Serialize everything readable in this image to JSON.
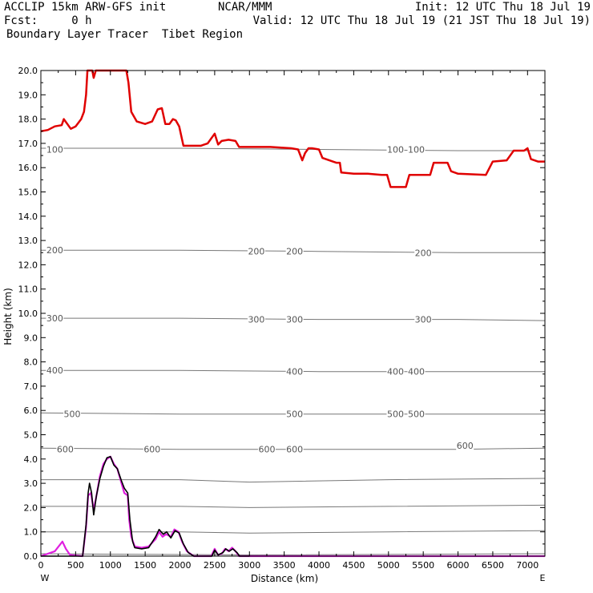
{
  "header": {
    "line1_left": "ACCLIP 15km ARW-GFS init",
    "line1_center": "NCAR/MMM",
    "line1_right": "Init: 12 UTC Thu 18 Jul 19",
    "line2_left": "Fcst:     0 h",
    "line2_right": "Valid: 12 UTC Thu 18 Jul 19 (21 JST Thu 18 Jul 19)",
    "line3_left": "Boundary Layer Tracer  Tibet Region"
  },
  "colors": {
    "tracer_top": "#e00000",
    "tracer_base_magenta": "#e020e0",
    "tracer_base_black": "#000000",
    "contour": "#777777"
  },
  "chart_data": {
    "type": "line",
    "title": "",
    "xlabel": "Distance (km)",
    "ylabel": "Height (km)",
    "xlim": [
      0,
      7250
    ],
    "ylim": [
      0,
      20
    ],
    "x_ticks": [
      "0",
      "500",
      "1000",
      "1500",
      "2000",
      "2500",
      "3000",
      "3500",
      "4000",
      "4500",
      "5000",
      "5500",
      "6000",
      "6500",
      "7000"
    ],
    "x_tick_values": [
      0,
      500,
      1000,
      1500,
      2000,
      2500,
      3000,
      3500,
      4000,
      4500,
      5000,
      5500,
      6000,
      6500,
      7000
    ],
    "y_ticks": [
      "0.0",
      "1.0",
      "2.0",
      "3.0",
      "4.0",
      "5.0",
      "6.0",
      "7.0",
      "8.0",
      "9.0",
      "10.0",
      "11.0",
      "12.0",
      "13.0",
      "14.0",
      "15.0",
      "16.0",
      "17.0",
      "18.0",
      "19.0",
      "20.0"
    ],
    "y_tick_values": [
      0,
      1,
      2,
      3,
      4,
      5,
      6,
      7,
      8,
      9,
      10,
      11,
      12,
      13,
      14,
      15,
      16,
      17,
      18,
      19,
      20
    ],
    "end_labels": {
      "left": "W",
      "right": "E"
    },
    "pressure_contours": [
      {
        "level": "100",
        "points": [
          [
            0,
            16.8
          ],
          [
            2000,
            16.8
          ],
          [
            4000,
            16.75
          ],
          [
            6000,
            16.7
          ],
          [
            7250,
            16.7
          ]
        ],
        "labels": [
          [
            200,
            16.75
          ],
          [
            5100,
            16.75
          ],
          [
            5400,
            16.75
          ]
        ]
      },
      {
        "level": "200",
        "points": [
          [
            0,
            12.6
          ],
          [
            2000,
            12.6
          ],
          [
            4000,
            12.55
          ],
          [
            6000,
            12.5
          ],
          [
            7250,
            12.5
          ]
        ],
        "labels": [
          [
            200,
            12.6
          ],
          [
            3100,
            12.55
          ],
          [
            3650,
            12.55
          ],
          [
            5500,
            12.5
          ]
        ]
      },
      {
        "level": "300",
        "points": [
          [
            0,
            9.8
          ],
          [
            2000,
            9.8
          ],
          [
            4000,
            9.75
          ],
          [
            6000,
            9.75
          ],
          [
            7250,
            9.7
          ]
        ],
        "labels": [
          [
            200,
            9.8
          ],
          [
            3100,
            9.75
          ],
          [
            3650,
            9.75
          ],
          [
            5500,
            9.75
          ]
        ]
      },
      {
        "level": "400",
        "points": [
          [
            0,
            7.65
          ],
          [
            2000,
            7.65
          ],
          [
            4000,
            7.6
          ],
          [
            6000,
            7.6
          ],
          [
            7250,
            7.6
          ]
        ],
        "labels": [
          [
            200,
            7.65
          ],
          [
            3650,
            7.6
          ],
          [
            5100,
            7.6
          ],
          [
            5400,
            7.6
          ]
        ]
      },
      {
        "level": "500",
        "points": [
          [
            0,
            5.9
          ],
          [
            2000,
            5.85
          ],
          [
            4000,
            5.85
          ],
          [
            6000,
            5.85
          ],
          [
            7250,
            5.85
          ]
        ],
        "labels": [
          [
            450,
            5.85
          ],
          [
            3650,
            5.85
          ],
          [
            5100,
            5.85
          ],
          [
            5400,
            5.85
          ]
        ]
      },
      {
        "level": "600",
        "points": [
          [
            0,
            4.45
          ],
          [
            2000,
            4.4
          ],
          [
            4000,
            4.4
          ],
          [
            6000,
            4.4
          ],
          [
            7250,
            4.45
          ]
        ],
        "labels": [
          [
            350,
            4.4
          ],
          [
            1600,
            4.4
          ],
          [
            3250,
            4.4
          ],
          [
            3650,
            4.4
          ],
          [
            6100,
            4.55
          ]
        ]
      },
      {
        "level": "",
        "points": [
          [
            0,
            3.15
          ],
          [
            2000,
            3.15
          ],
          [
            3000,
            3.05
          ],
          [
            5000,
            3.15
          ],
          [
            7250,
            3.2
          ]
        ],
        "labels": []
      },
      {
        "level": "",
        "points": [
          [
            0,
            2.05
          ],
          [
            2000,
            2.05
          ],
          [
            3000,
            2.0
          ],
          [
            5000,
            2.05
          ],
          [
            7250,
            2.1
          ]
        ],
        "labels": []
      },
      {
        "level": "",
        "points": [
          [
            0,
            1.0
          ],
          [
            2000,
            1.0
          ],
          [
            3000,
            0.95
          ],
          [
            5000,
            1.0
          ],
          [
            7250,
            1.05
          ]
        ],
        "labels": []
      },
      {
        "level": "",
        "points": [
          [
            0,
            0.1
          ],
          [
            3000,
            0.05
          ],
          [
            7250,
            0.1
          ]
        ],
        "labels": []
      }
    ],
    "series": [
      {
        "color": "#e00000",
        "points": [
          [
            0,
            17.5
          ],
          [
            100,
            17.55
          ],
          [
            200,
            17.7
          ],
          [
            300,
            17.75
          ],
          [
            330,
            18.0
          ],
          [
            380,
            17.8
          ],
          [
            430,
            17.6
          ],
          [
            500,
            17.7
          ],
          [
            580,
            18.0
          ],
          [
            620,
            18.3
          ],
          [
            650,
            19.0
          ],
          [
            670,
            20.0
          ],
          [
            740,
            20.0
          ],
          [
            760,
            19.7
          ],
          [
            790,
            20.0
          ],
          [
            1230,
            20.0
          ],
          [
            1260,
            19.5
          ],
          [
            1300,
            18.3
          ],
          [
            1380,
            17.9
          ],
          [
            1500,
            17.8
          ],
          [
            1600,
            17.9
          ],
          [
            1680,
            18.4
          ],
          [
            1740,
            18.45
          ],
          [
            1790,
            17.8
          ],
          [
            1850,
            17.8
          ],
          [
            1900,
            18.0
          ],
          [
            1940,
            17.95
          ],
          [
            1990,
            17.7
          ],
          [
            2050,
            16.9
          ],
          [
            2150,
            16.9
          ],
          [
            2300,
            16.9
          ],
          [
            2400,
            17.0
          ],
          [
            2500,
            17.4
          ],
          [
            2550,
            16.95
          ],
          [
            2600,
            17.1
          ],
          [
            2700,
            17.15
          ],
          [
            2800,
            17.1
          ],
          [
            2850,
            16.85
          ],
          [
            3000,
            16.85
          ],
          [
            3300,
            16.85
          ],
          [
            3600,
            16.8
          ],
          [
            3700,
            16.75
          ],
          [
            3760,
            16.3
          ],
          [
            3800,
            16.6
          ],
          [
            3850,
            16.8
          ],
          [
            3900,
            16.8
          ],
          [
            4000,
            16.75
          ],
          [
            4050,
            16.4
          ],
          [
            4150,
            16.3
          ],
          [
            4250,
            16.2
          ],
          [
            4300,
            16.2
          ],
          [
            4320,
            15.8
          ],
          [
            4500,
            15.75
          ],
          [
            4700,
            15.75
          ],
          [
            4900,
            15.7
          ],
          [
            4980,
            15.7
          ],
          [
            5030,
            15.2
          ],
          [
            5250,
            15.2
          ],
          [
            5300,
            15.7
          ],
          [
            5600,
            15.7
          ],
          [
            5650,
            16.2
          ],
          [
            5850,
            16.2
          ],
          [
            5900,
            15.85
          ],
          [
            6000,
            15.75
          ],
          [
            6400,
            15.7
          ],
          [
            6500,
            16.25
          ],
          [
            6700,
            16.3
          ],
          [
            6800,
            16.7
          ],
          [
            6950,
            16.7
          ],
          [
            7000,
            16.8
          ],
          [
            7050,
            16.35
          ],
          [
            7150,
            16.25
          ],
          [
            7250,
            16.25
          ]
        ]
      },
      {
        "color": "#e020e0",
        "points": [
          [
            0,
            0.0
          ],
          [
            200,
            0.2
          ],
          [
            310,
            0.6
          ],
          [
            360,
            0.3
          ],
          [
            420,
            0.05
          ],
          [
            600,
            0.0
          ],
          [
            650,
            1.2
          ],
          [
            680,
            2.5
          ],
          [
            720,
            2.6
          ],
          [
            760,
            1.9
          ],
          [
            800,
            2.5
          ],
          [
            850,
            3.3
          ],
          [
            900,
            3.8
          ],
          [
            950,
            4.0
          ],
          [
            1000,
            4.1
          ],
          [
            1050,
            3.8
          ],
          [
            1100,
            3.6
          ],
          [
            1160,
            3.0
          ],
          [
            1200,
            2.6
          ],
          [
            1250,
            2.5
          ],
          [
            1270,
            1.5
          ],
          [
            1300,
            0.8
          ],
          [
            1350,
            0.4
          ],
          [
            1450,
            0.35
          ],
          [
            1550,
            0.4
          ],
          [
            1650,
            0.7
          ],
          [
            1700,
            1.0
          ],
          [
            1750,
            0.8
          ],
          [
            1800,
            0.9
          ],
          [
            1870,
            0.8
          ],
          [
            1920,
            1.1
          ],
          [
            1980,
            1.0
          ],
          [
            2030,
            0.6
          ],
          [
            2100,
            0.2
          ],
          [
            2200,
            0.0
          ],
          [
            2450,
            0.0
          ],
          [
            2500,
            0.3
          ],
          [
            2550,
            0.05
          ],
          [
            2600,
            0.1
          ],
          [
            2650,
            0.3
          ],
          [
            2700,
            0.2
          ],
          [
            2750,
            0.35
          ],
          [
            2800,
            0.2
          ],
          [
            2850,
            0.0
          ],
          [
            7250,
            0.0
          ]
        ]
      },
      {
        "color": "#000000",
        "points": [
          [
            0,
            0.0
          ],
          [
            400,
            0.0
          ],
          [
            600,
            0.0
          ],
          [
            650,
            1.3
          ],
          [
            680,
            2.6
          ],
          [
            700,
            3.0
          ],
          [
            730,
            2.6
          ],
          [
            760,
            1.7
          ],
          [
            800,
            2.5
          ],
          [
            850,
            3.2
          ],
          [
            900,
            3.7
          ],
          [
            950,
            4.05
          ],
          [
            1000,
            4.1
          ],
          [
            1050,
            3.75
          ],
          [
            1100,
            3.6
          ],
          [
            1160,
            3.1
          ],
          [
            1200,
            2.8
          ],
          [
            1250,
            2.6
          ],
          [
            1280,
            1.5
          ],
          [
            1320,
            0.6
          ],
          [
            1350,
            0.35
          ],
          [
            1450,
            0.3
          ],
          [
            1550,
            0.35
          ],
          [
            1650,
            0.8
          ],
          [
            1700,
            1.1
          ],
          [
            1760,
            0.9
          ],
          [
            1810,
            1.0
          ],
          [
            1870,
            0.75
          ],
          [
            1930,
            1.05
          ],
          [
            1990,
            0.95
          ],
          [
            2050,
            0.5
          ],
          [
            2120,
            0.15
          ],
          [
            2200,
            0.0
          ],
          [
            2460,
            0.0
          ],
          [
            2500,
            0.25
          ],
          [
            2550,
            0.05
          ],
          [
            2620,
            0.15
          ],
          [
            2660,
            0.3
          ],
          [
            2710,
            0.2
          ],
          [
            2760,
            0.3
          ],
          [
            2820,
            0.15
          ],
          [
            2860,
            0.0
          ],
          [
            3000,
            0.0
          ]
        ]
      }
    ]
  }
}
